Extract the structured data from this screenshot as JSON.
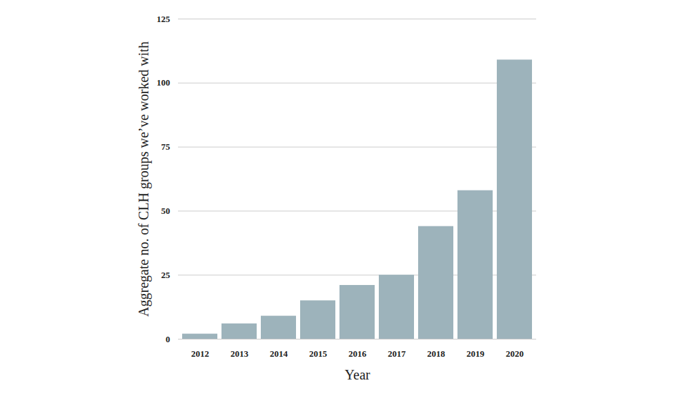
{
  "chart_data": {
    "type": "bar",
    "categories": [
      "2012",
      "2013",
      "2014",
      "2015",
      "2016",
      "2017",
      "2018",
      "2019",
      "2020"
    ],
    "values": [
      2,
      6,
      9,
      15,
      21,
      25,
      44,
      58,
      109
    ],
    "color": "#9db3bb",
    "x_label": "Year",
    "y_label": "Aggregate no. of CLH groups we’ve worked with",
    "ylim": [
      0,
      125
    ],
    "yticks": [
      0,
      25,
      50,
      75,
      100,
      125
    ],
    "grid": true
  }
}
